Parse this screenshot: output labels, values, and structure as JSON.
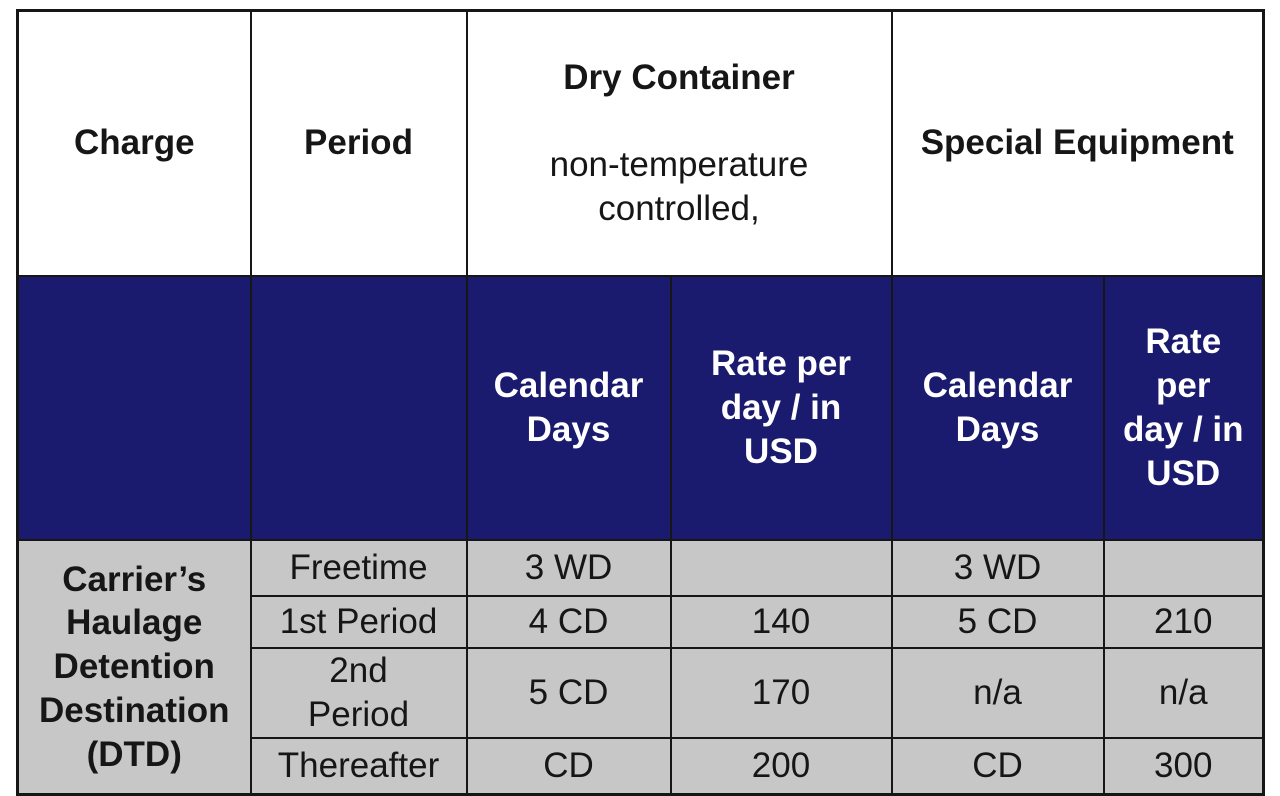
{
  "table": {
    "header_row1": {
      "charge": "Charge",
      "period": "Period",
      "dry_container_title": "Dry Container",
      "dry_container_subtitle": "non-temperature\ncontrolled,",
      "special_equipment": "Special Equipment"
    },
    "header_row2": {
      "dry_calendar_days": "Calendar\nDays",
      "dry_rate": "Rate per\nday / in\nUSD",
      "special_calendar_days": "Calendar\nDays",
      "special_rate": "Rate\nper\nday / in\nUSD"
    },
    "charge_name": "Carrier’s\nHaulage\nDetention\nDestination\n(DTD)",
    "rows": [
      {
        "period": "Freetime",
        "dry_days": "3 WD",
        "dry_rate": "",
        "special_days": "3 WD",
        "special_rate": ""
      },
      {
        "period": "1st Period",
        "dry_days": "4 CD",
        "dry_rate": "140",
        "special_days": "5 CD",
        "special_rate": "210"
      },
      {
        "period": "2nd\nPeriod",
        "dry_days": "5 CD",
        "dry_rate": "170",
        "special_days": "n/a",
        "special_rate": "n/a"
      },
      {
        "period": "Thereafter",
        "dry_days": "CD",
        "dry_rate": "200",
        "special_days": "CD",
        "special_rate": "300"
      }
    ],
    "colors": {
      "header_navy": "#1a1a6e",
      "row_gray": "#c7c7c7",
      "border": "#161616",
      "header_text": "#ffffff"
    }
  },
  "chart_data": {
    "type": "table",
    "title": "Carrier’s Haulage Detention Destination (DTD)",
    "columns": [
      "Charge",
      "Period",
      "Dry Container Calendar Days",
      "Dry Container Rate per day / in USD",
      "Special Equipment Calendar Days",
      "Special Equipment Rate per day / in USD"
    ],
    "rows": [
      [
        "Carrier’s Haulage Detention Destination (DTD)",
        "Freetime",
        "3 WD",
        "",
        "3 WD",
        ""
      ],
      [
        "Carrier’s Haulage Detention Destination (DTD)",
        "1st Period",
        "4 CD",
        "140",
        "5 CD",
        "210"
      ],
      [
        "Carrier’s Haulage Detention Destination (DTD)",
        "2nd Period",
        "5 CD",
        "170",
        "n/a",
        "n/a"
      ],
      [
        "Carrier’s Haulage Detention Destination (DTD)",
        "Thereafter",
        "CD",
        "200",
        "CD",
        "300"
      ]
    ]
  }
}
